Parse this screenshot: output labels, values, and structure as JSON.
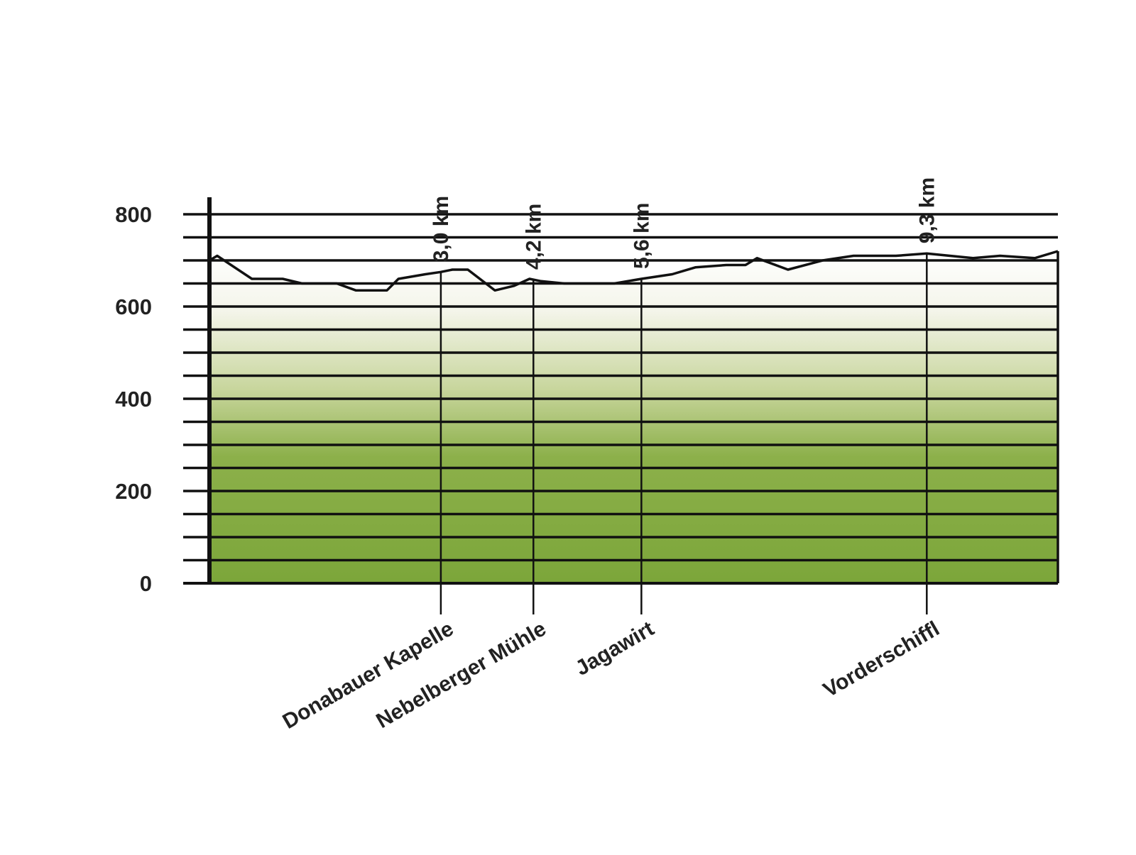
{
  "chart_data": {
    "type": "area",
    "title": "",
    "xlabel": "",
    "ylabel": "",
    "xlim": [
      0,
      11
    ],
    "ylim": [
      0,
      800
    ],
    "ytick_values": [
      0,
      200,
      400,
      600,
      800
    ],
    "ytick_labels": [
      "0",
      "200",
      "400",
      "600",
      "800"
    ],
    "gridlines": [
      50,
      100,
      150,
      200,
      250,
      300,
      350,
      400,
      450,
      500,
      550,
      600,
      650,
      700,
      750,
      800
    ],
    "grid": true,
    "legend": "none",
    "fill_gradient": [
      "#ffffff",
      "#f4f5ea",
      "#c7d59b",
      "#8cb04a",
      "#7ca63a"
    ],
    "series": [
      {
        "x": [
          0,
          0.1,
          0.55,
          0.95,
          1.2,
          1.65,
          1.9,
          2.3,
          2.45,
          2.8,
          3.0,
          3.15,
          3.35,
          3.7,
          3.95,
          4.15,
          4.3,
          4.6,
          4.9,
          5.25,
          5.6,
          6.0,
          6.3,
          6.7,
          6.95,
          7.1,
          7.5,
          7.95,
          8.35,
          8.9,
          9.3,
          9.6,
          9.9,
          10.25,
          10.7,
          11.0
        ],
        "values": [
          700,
          710,
          660,
          660,
          650,
          650,
          635,
          635,
          660,
          670,
          675,
          680,
          680,
          635,
          645,
          660,
          655,
          650,
          650,
          650,
          660,
          670,
          685,
          690,
          690,
          705,
          680,
          700,
          710,
          710,
          715,
          710,
          705,
          710,
          705,
          720
        ]
      }
    ],
    "markers": [
      {
        "x": 3.0,
        "distance": "3,0 km",
        "place": "Donabauer Kapelle"
      },
      {
        "x": 4.2,
        "distance": "4,2 km",
        "place": "Nebelberger Mühle"
      },
      {
        "x": 5.6,
        "distance": "5,6 km",
        "place": "Jagawirt"
      },
      {
        "x": 9.3,
        "distance": "9,3 km",
        "place": "Vorderschiffl"
      }
    ]
  },
  "colors": {
    "line": "#111111",
    "axis": "#111111",
    "text": "#222222"
  }
}
